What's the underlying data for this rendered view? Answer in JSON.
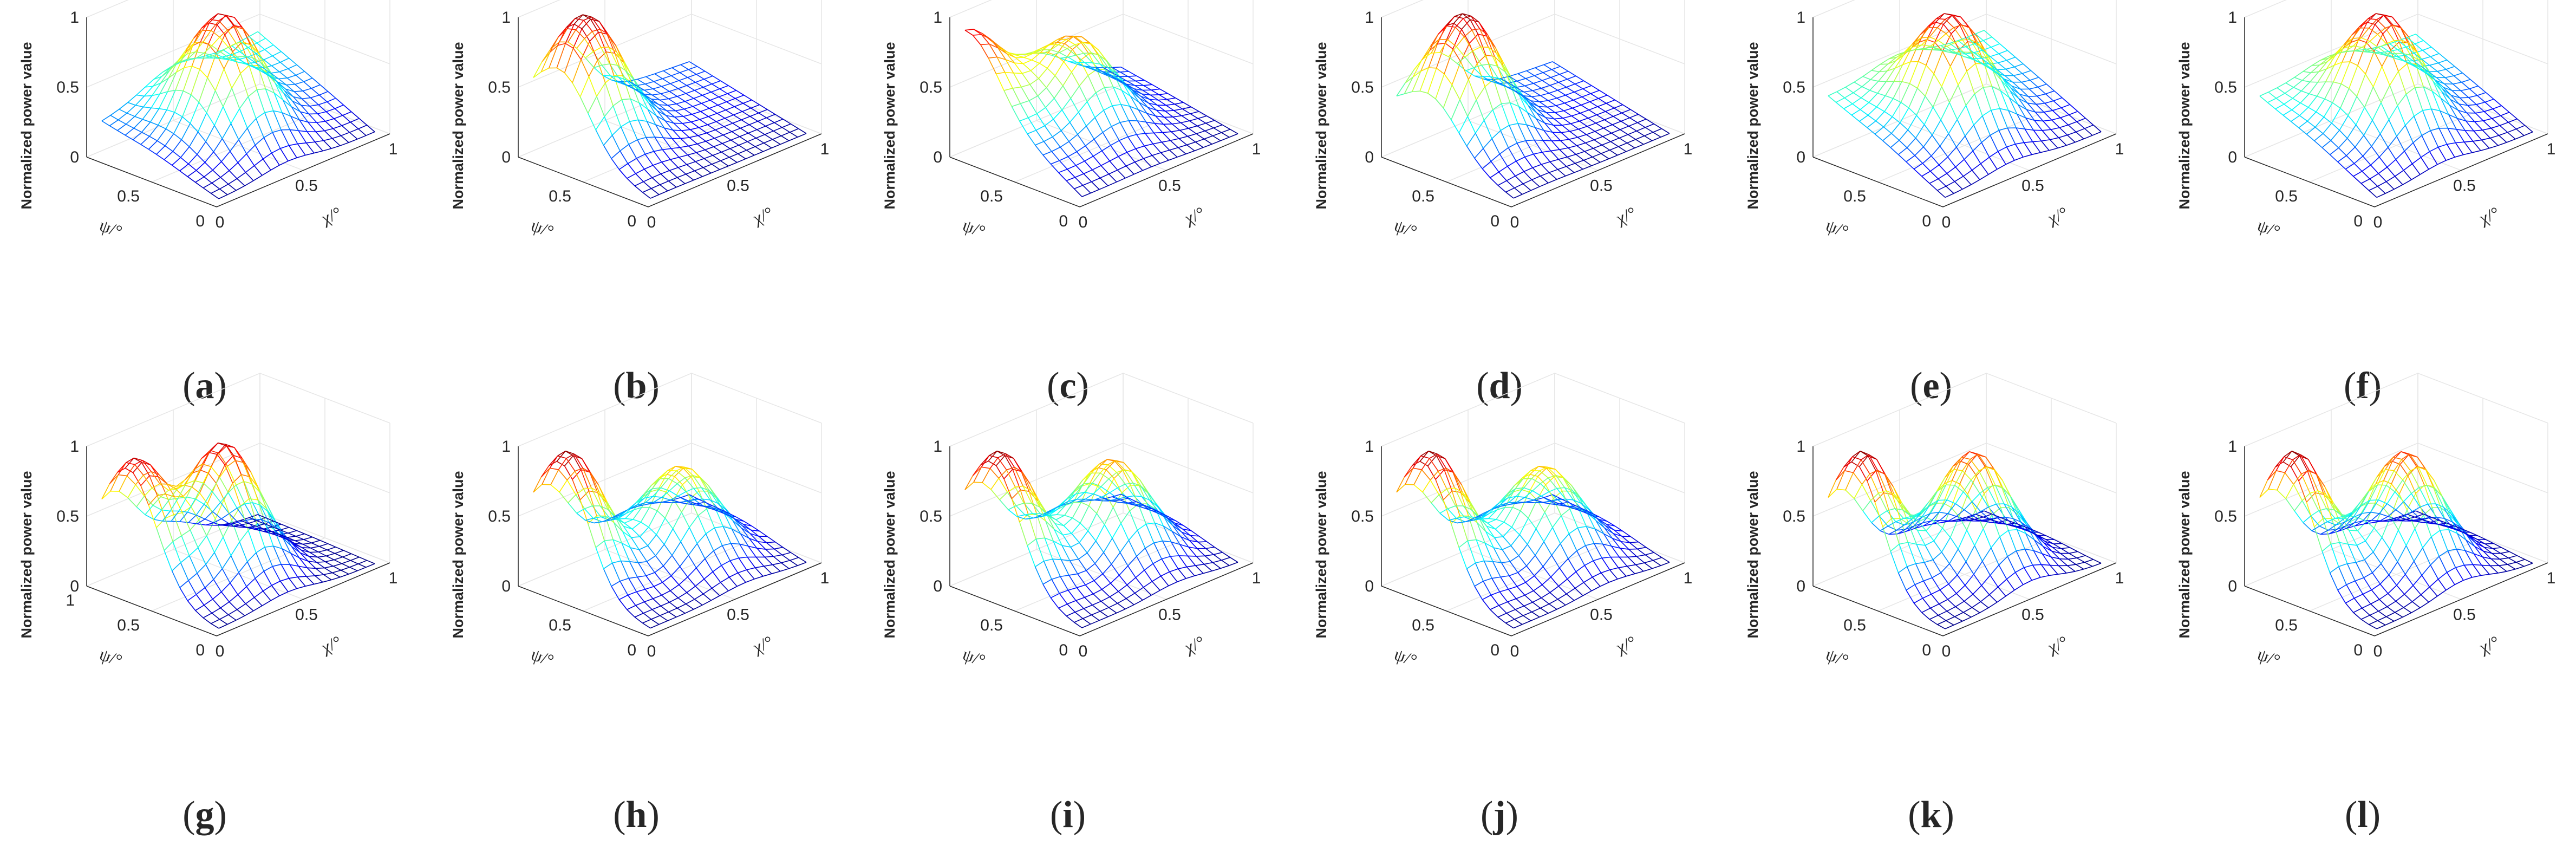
{
  "figure": {
    "panel_count": 12,
    "layout": "2 rows x 6 columns"
  },
  "chart_data": [
    {
      "id": "a",
      "caption": "a",
      "type": "surface3d",
      "title": "",
      "zlabel": "Normalized power value",
      "xlabel": "χ/°",
      "ylabel": "ψ/°",
      "xlim": [
        0,
        1
      ],
      "ylim": [
        0,
        1
      ],
      "zlim": [
        0,
        1
      ],
      "x_ticks": [
        "0",
        "0.5",
        "1"
      ],
      "y_ticks": [
        "0",
        "0.5"
      ],
      "z_ticks": [
        "0",
        "0.5",
        "1"
      ],
      "grid": true,
      "colormap": "jet",
      "description_values": {
        "peaks": [
          {
            "x": 0.45,
            "y": 0.55,
            "z": 0.95
          }
        ],
        "base": 0.25,
        "x_end": 0.75
      }
    },
    {
      "id": "b",
      "caption": "b",
      "type": "surface3d",
      "title": "",
      "zlabel": "Normalized power value",
      "xlabel": "χ/°",
      "ylabel": "ψ/°",
      "xlim": [
        0,
        1
      ],
      "ylim": [
        0,
        1
      ],
      "zlim": [
        0,
        1
      ],
      "x_ticks": [
        "0",
        "0.5",
        "1"
      ],
      "y_ticks": [
        "0",
        "0.5"
      ],
      "z_ticks": [
        "0",
        "0.5",
        "1"
      ],
      "grid": true,
      "colormap": "jet",
      "description_values": {
        "peaks": [
          {
            "x": 0.2,
            "y": 0.75,
            "z": 1.0
          }
        ],
        "base": 0.3,
        "x_end": 0.35
      }
    },
    {
      "id": "c",
      "caption": "c",
      "type": "surface3d",
      "title": "",
      "zlabel": "Normalized power value",
      "xlabel": "χ/°",
      "ylabel": "ψ/°",
      "xlim": [
        0,
        1
      ],
      "ylim": [
        0,
        1
      ],
      "zlim": [
        0,
        1
      ],
      "x_ticks": [
        "0",
        "0.5",
        "1"
      ],
      "y_ticks": [
        "0",
        "0.5"
      ],
      "z_ticks": [
        "0",
        "0.5",
        "1"
      ],
      "grid": true,
      "colormap": "jet",
      "description_values": {
        "peaks": [
          {
            "x": 0.45,
            "y": 0.65,
            "z": 0.75
          },
          {
            "x": 0.05,
            "y": 0.95,
            "z": 0.9
          }
        ],
        "base": 0.6,
        "x_end": 0.25
      }
    },
    {
      "id": "d",
      "caption": "d",
      "type": "surface3d",
      "title": "",
      "zlabel": "Normalized power value",
      "xlabel": "χ/°",
      "ylabel": "ψ/°",
      "xlim": [
        0,
        1
      ],
      "ylim": [
        0,
        1
      ],
      "zlim": [
        0,
        1
      ],
      "x_ticks": [
        "0",
        "0.5",
        "1"
      ],
      "y_ticks": [
        "0",
        "0.5"
      ],
      "z_ticks": [
        "0",
        "0.5",
        "1"
      ],
      "grid": true,
      "colormap": "jet",
      "description_values": {
        "peaks": [
          {
            "x": 0.25,
            "y": 0.7,
            "z": 1.0
          }
        ],
        "base": 0.3,
        "x_end": 0.35
      }
    },
    {
      "id": "e",
      "caption": "e",
      "type": "surface3d",
      "title": "",
      "zlabel": "Normalized power value",
      "xlabel": "χ/°",
      "ylabel": "ψ/°",
      "xlim": [
        0,
        1
      ],
      "ylim": [
        0,
        1
      ],
      "zlim": [
        0,
        1
      ],
      "x_ticks": [
        "0",
        "0.5",
        "1"
      ],
      "y_ticks": [
        "0",
        "0.5"
      ],
      "z_ticks": [
        "0",
        "0.5",
        "1"
      ],
      "grid": true,
      "colormap": "jet",
      "description_values": {
        "peaks": [
          {
            "x": 0.45,
            "y": 0.55,
            "z": 0.95
          }
        ],
        "base": 0.45,
        "x_end": 0.75
      }
    },
    {
      "id": "f",
      "caption": "f",
      "type": "surface3d",
      "title": "",
      "zlabel": "Normalized power value",
      "xlabel": "χ/°",
      "ylabel": "ψ/°",
      "xlim": [
        0,
        1
      ],
      "ylim": [
        0,
        1
      ],
      "zlim": [
        0,
        1
      ],
      "x_ticks": [
        "0",
        "0.5",
        "1"
      ],
      "y_ticks": [
        "0",
        "0.5"
      ],
      "z_ticks": [
        "0",
        "0.5",
        "1"
      ],
      "grid": true,
      "colormap": "jet",
      "description_values": {
        "peaks": [
          {
            "x": 0.45,
            "y": 0.55,
            "z": 0.95
          }
        ],
        "base": 0.45,
        "x_end": 0.7
      }
    },
    {
      "id": "g",
      "caption": "g",
      "type": "surface3d",
      "title": "",
      "zlabel": "Normalized power value",
      "xlabel": "χ/°",
      "ylabel": "ψ/°",
      "xlim": [
        0,
        1
      ],
      "ylim": [
        0,
        1
      ],
      "zlim": [
        0,
        1
      ],
      "x_ticks": [
        "0",
        "0.5",
        "1"
      ],
      "y_ticks": [
        "0",
        "0.5",
        "1"
      ],
      "z_ticks": [
        "0",
        "0.5",
        "1"
      ],
      "grid": true,
      "colormap": "jet",
      "description_values": {
        "peaks": [
          {
            "x": 0.1,
            "y": 0.75,
            "z": 0.95
          },
          {
            "x": 0.45,
            "y": 0.55,
            "z": 0.95
          }
        ],
        "base": 0.1,
        "x_end": 0.05
      }
    },
    {
      "id": "h",
      "caption": "h",
      "type": "surface3d",
      "title": "",
      "zlabel": "Normalized power value",
      "xlabel": "χ/°",
      "ylabel": "ψ/°",
      "xlim": [
        0,
        1
      ],
      "ylim": [
        0,
        1
      ],
      "zlim": [
        0,
        1
      ],
      "x_ticks": [
        "0",
        "0.5",
        "1"
      ],
      "y_ticks": [
        "0",
        "0.5"
      ],
      "z_ticks": [
        "0",
        "0.5",
        "1"
      ],
      "grid": true,
      "colormap": "jet",
      "description_values": {
        "peaks": [
          {
            "x": 0.1,
            "y": 0.75,
            "z": 1.0
          },
          {
            "x": 0.6,
            "y": 0.55,
            "z": 0.7
          }
        ],
        "base": 0.15,
        "x_end": 0.3
      }
    },
    {
      "id": "i",
      "caption": "i",
      "type": "surface3d",
      "title": "",
      "zlabel": "Normalized power value",
      "xlabel": "χ/°",
      "ylabel": "ψ/°",
      "xlim": [
        0,
        1
      ],
      "ylim": [
        0,
        1
      ],
      "zlim": [
        0,
        1
      ],
      "x_ticks": [
        "0",
        "0.5",
        "1"
      ],
      "y_ticks": [
        "0",
        "0.5"
      ],
      "z_ticks": [
        "0",
        "0.5",
        "1"
      ],
      "grid": true,
      "colormap": "jet",
      "description_values": {
        "peaks": [
          {
            "x": 0.1,
            "y": 0.75,
            "z": 1.0
          },
          {
            "x": 0.6,
            "y": 0.55,
            "z": 0.75
          }
        ],
        "base": 0.2,
        "x_end": 0.3
      }
    },
    {
      "id": "j",
      "caption": "j",
      "type": "surface3d",
      "title": "",
      "zlabel": "Normalized power value",
      "xlabel": "χ/°",
      "ylabel": "ψ/°",
      "xlim": [
        0,
        1
      ],
      "ylim": [
        0,
        1
      ],
      "zlim": [
        0,
        1
      ],
      "x_ticks": [
        "0",
        "0.5",
        "1"
      ],
      "y_ticks": [
        "0",
        "0.5"
      ],
      "z_ticks": [
        "0",
        "0.5",
        "1"
      ],
      "grid": true,
      "colormap": "jet",
      "description_values": {
        "peaks": [
          {
            "x": 0.1,
            "y": 0.75,
            "z": 1.0
          },
          {
            "x": 0.6,
            "y": 0.55,
            "z": 0.7
          }
        ],
        "base": 0.15,
        "x_end": 0.3
      }
    },
    {
      "id": "k",
      "caption": "k",
      "type": "surface3d",
      "title": "",
      "zlabel": "Normalized power value",
      "xlabel": "χ/°",
      "ylabel": "ψ/°",
      "xlim": [
        0,
        1
      ],
      "ylim": [
        0,
        1
      ],
      "zlim": [
        0,
        1
      ],
      "x_ticks": [
        "0",
        "0.5",
        "1"
      ],
      "y_ticks": [
        "0",
        "0.5"
      ],
      "z_ticks": [
        "0",
        "0.5",
        "1"
      ],
      "grid": true,
      "colormap": "jet",
      "description_values": {
        "peaks": [
          {
            "x": 0.1,
            "y": 0.75,
            "z": 1.0
          },
          {
            "x": 0.55,
            "y": 0.5,
            "z": 0.85
          }
        ],
        "base": 0.05,
        "x_end": 0.1
      }
    },
    {
      "id": "l",
      "caption": "l",
      "type": "surface3d",
      "title": "",
      "zlabel": "Normalized power value",
      "xlabel": "χ/°",
      "ylabel": "ψ/°",
      "xlim": [
        0,
        1
      ],
      "ylim": [
        0,
        1
      ],
      "zlim": [
        0,
        1
      ],
      "x_ticks": [
        "0",
        "0.5",
        "1"
      ],
      "y_ticks": [
        "0",
        "0.5"
      ],
      "z_ticks": [
        "0",
        "0.5",
        "1"
      ],
      "grid": true,
      "colormap": "jet",
      "description_values": {
        "peaks": [
          {
            "x": 0.1,
            "y": 0.75,
            "z": 1.0
          },
          {
            "x": 0.55,
            "y": 0.5,
            "z": 0.85
          }
        ],
        "base": 0.05,
        "x_end": 0.1
      }
    }
  ]
}
